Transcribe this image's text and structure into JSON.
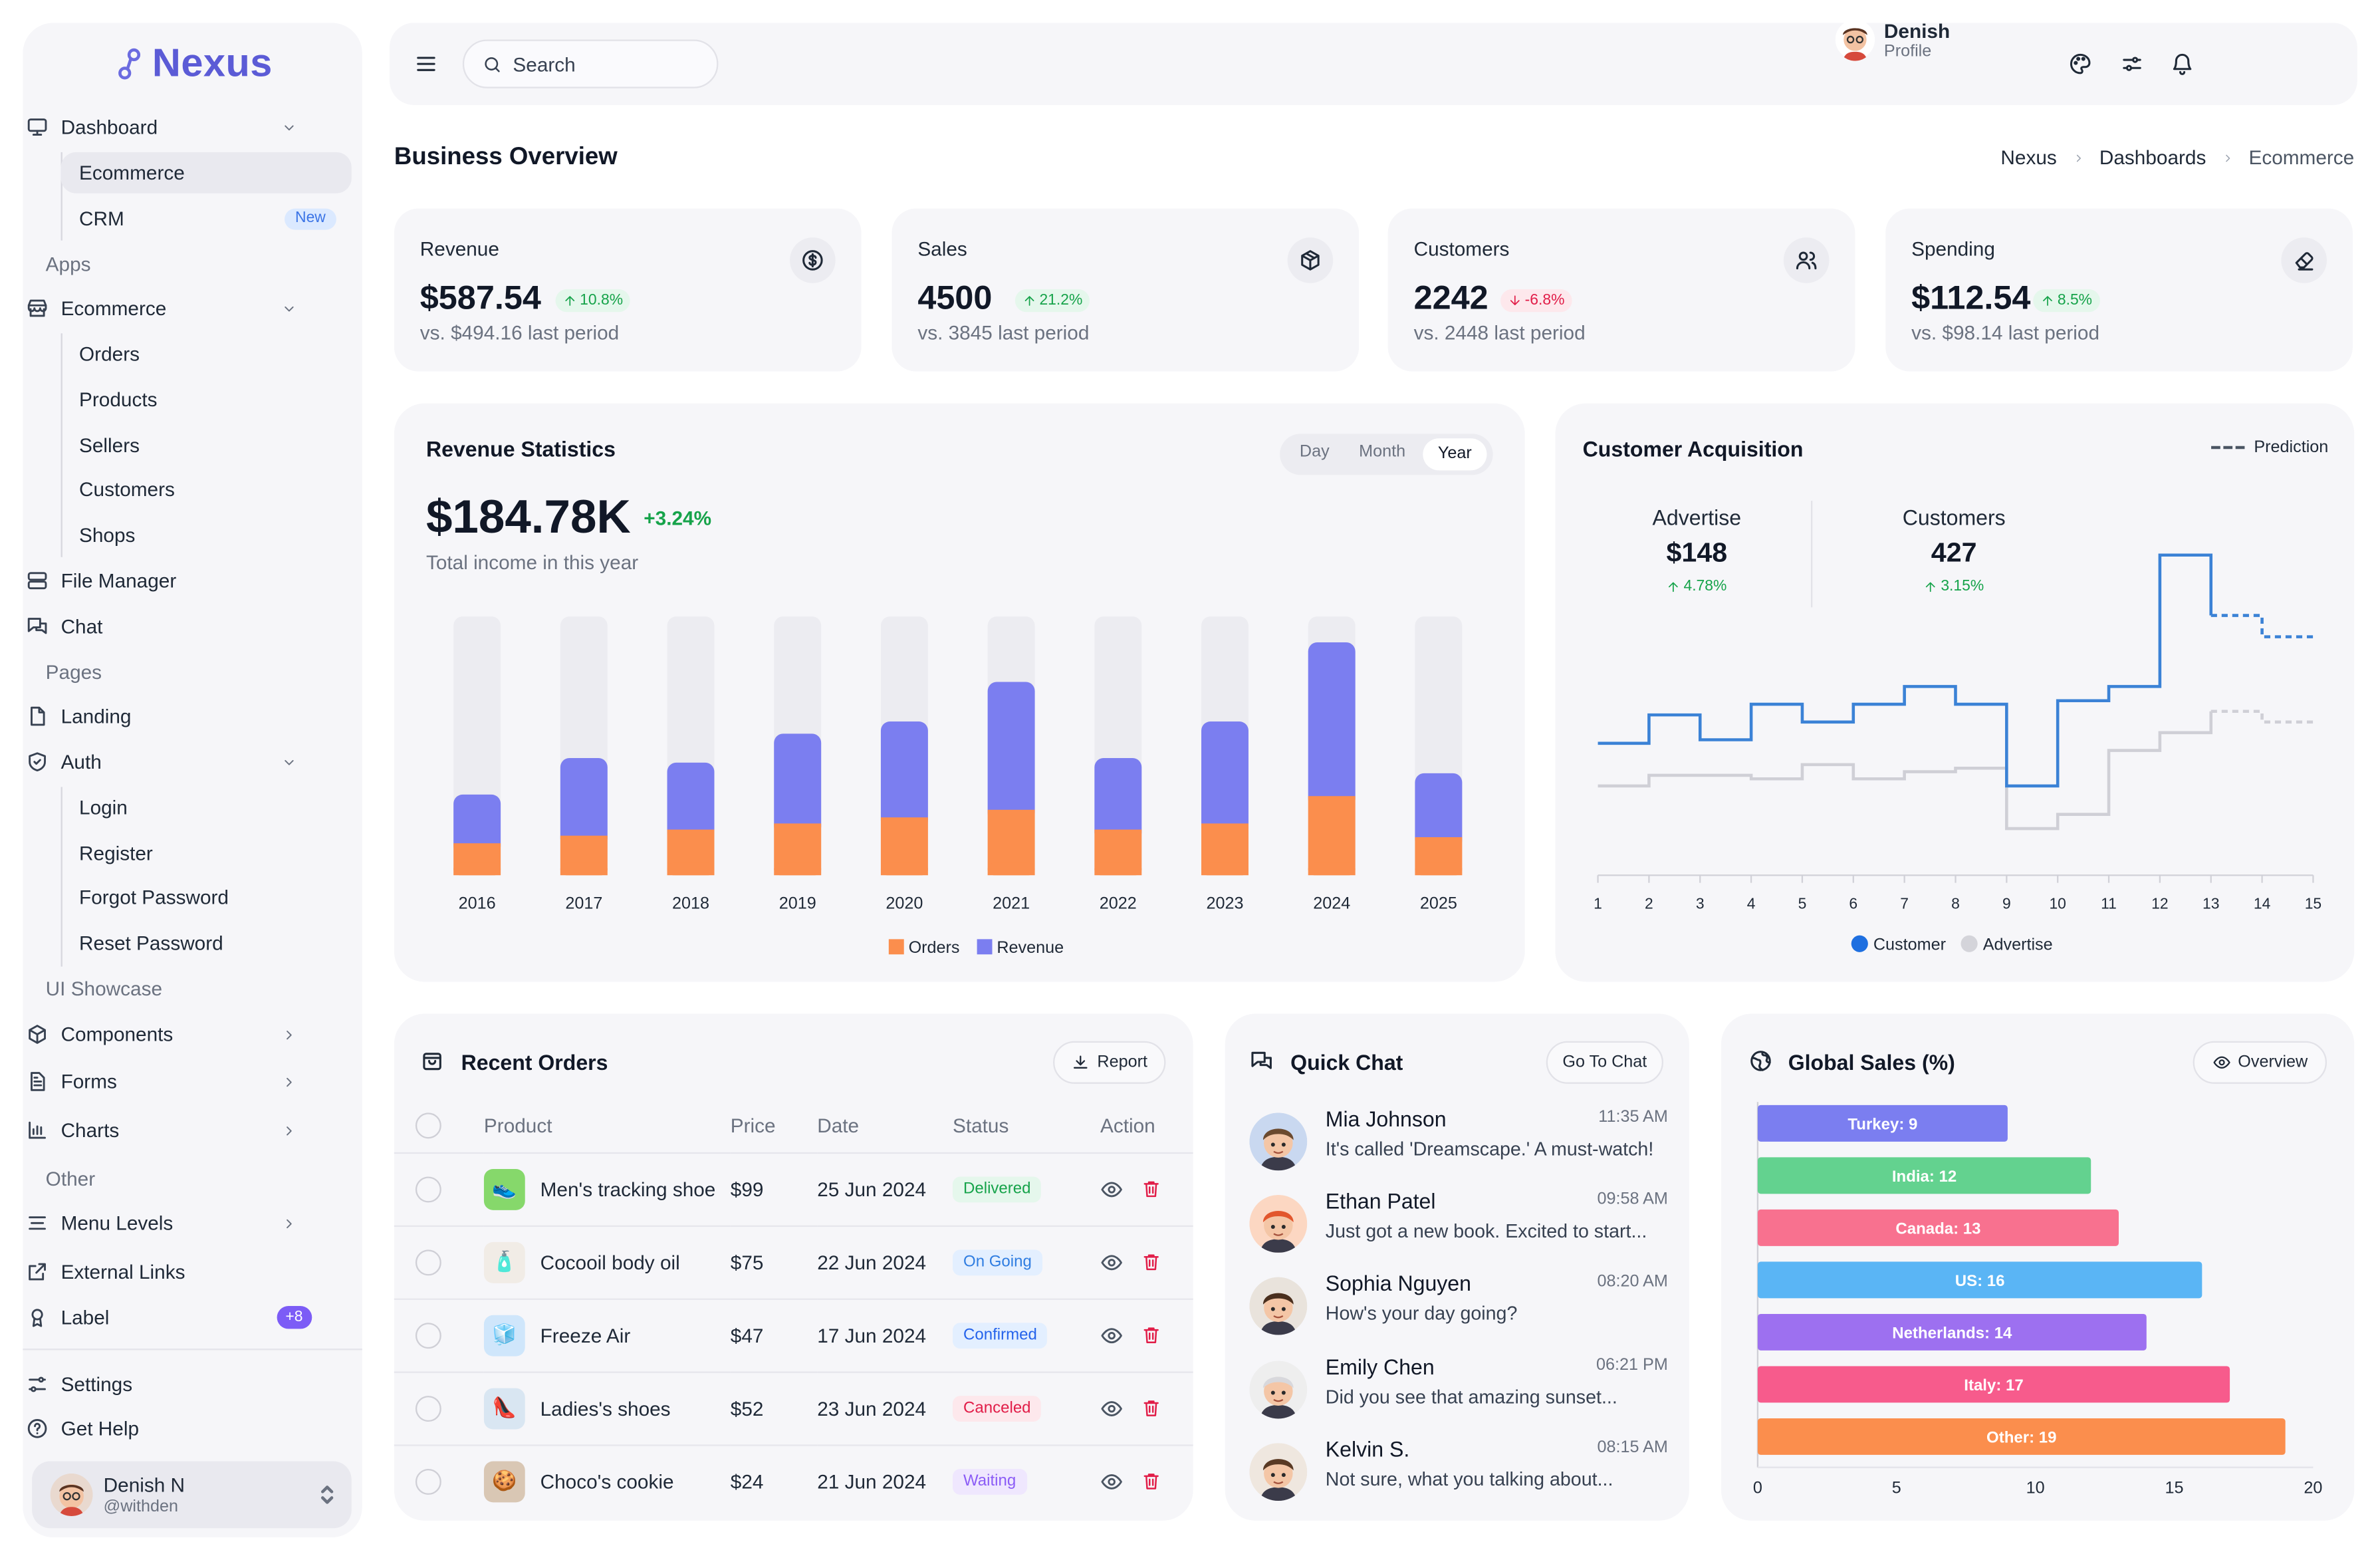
{
  "brand": {
    "name": "Nexus"
  },
  "sidebar": {
    "dashboard": "Dashboard",
    "ecommerce_sub": "Ecommerce",
    "crm": "CRM",
    "crm_badge": "New",
    "apps_section": "Apps",
    "ecommerce": "Ecommerce",
    "orders": "Orders",
    "products": "Products",
    "sellers": "Sellers",
    "customers": "Customers",
    "shops": "Shops",
    "file_manager": "File Manager",
    "chat": "Chat",
    "pages_section": "Pages",
    "landing": "Landing",
    "auth": "Auth",
    "login": "Login",
    "register": "Register",
    "forgot_password": "Forgot Password",
    "reset_password": "Reset Password",
    "ui_section": "UI Showcase",
    "components": "Components",
    "forms": "Forms",
    "charts": "Charts",
    "other_section": "Other",
    "menu_levels": "Menu Levels",
    "external_links": "External Links",
    "label": "Label",
    "label_badge": "+8",
    "settings": "Settings",
    "get_help": "Get Help",
    "user": {
      "name": "Denish N",
      "handle": "@withden"
    }
  },
  "topbar": {
    "search_placeholder": "Search",
    "user_name": "Denish",
    "user_role": "Profile"
  },
  "page": {
    "title": "Business Overview",
    "breadcrumb": [
      "Nexus",
      "Dashboards",
      "Ecommerce"
    ]
  },
  "stats": [
    {
      "label": "Revenue",
      "value": "$587.54",
      "change": "10.8%",
      "direction": "up",
      "sub": "vs. $494.16 last period",
      "icon": "dollar-icon"
    },
    {
      "label": "Sales",
      "value": "4500",
      "change": "21.2%",
      "direction": "up",
      "sub": "vs. 3845 last period",
      "icon": "box-icon"
    },
    {
      "label": "Customers",
      "value": "2242",
      "change": "-6.8%",
      "direction": "down",
      "sub": "vs. 2448 last period",
      "icon": "users-icon"
    },
    {
      "label": "Spending",
      "value": "$112.54",
      "change": "8.5%",
      "direction": "up",
      "sub": "vs. $98.14 last period",
      "icon": "eraser-icon"
    }
  ],
  "revenue_stats": {
    "title": "Revenue Statistics",
    "tabs": [
      "Day",
      "Month",
      "Year"
    ],
    "active_tab": "Year",
    "total": "$184.78K",
    "change": "+3.24%",
    "sub": "Total income in this year"
  },
  "acquisition": {
    "title": "Customer Acquisition",
    "prediction_label": "Prediction",
    "kpis": [
      {
        "label": "Advertise",
        "value": "$148",
        "change": "4.78%"
      },
      {
        "label": "Customers",
        "value": "427",
        "change": "3.15%"
      }
    ]
  },
  "recent_orders": {
    "title": "Recent Orders",
    "report_label": "Report",
    "columns": [
      "Product",
      "Price",
      "Date",
      "Status",
      "Action"
    ],
    "rows": [
      {
        "product": "Men's tracking shoe",
        "price": "$99",
        "date": "25 Jun 2024",
        "status": "Delivered",
        "status_key": "delivered",
        "thumb": "👟",
        "thumb_bg": "#86d86b"
      },
      {
        "product": "Cocooil body oil",
        "price": "$75",
        "date": "22 Jun 2024",
        "status": "On Going",
        "status_key": "ongoing",
        "thumb": "🧴",
        "thumb_bg": "#f1ece6"
      },
      {
        "product": "Freeze Air",
        "price": "$47",
        "date": "17 Jun 2024",
        "status": "Confirmed",
        "status_key": "confirmed",
        "thumb": "🧊",
        "thumb_bg": "#cfe6fb"
      },
      {
        "product": "Ladies's shoes",
        "price": "$52",
        "date": "23 Jun 2024",
        "status": "Canceled",
        "status_key": "canceled",
        "thumb": "👠",
        "thumb_bg": "#d9e6f2"
      },
      {
        "product": "Choco's cookie",
        "price": "$24",
        "date": "21 Jun 2024",
        "status": "Waiting",
        "status_key": "waiting",
        "thumb": "🍪",
        "thumb_bg": "#d9c7b4"
      }
    ]
  },
  "quick_chat": {
    "title": "Quick Chat",
    "button": "Go To Chat",
    "items": [
      {
        "name": "Mia Johnson",
        "time": "11:35 AM",
        "message": "It's called 'Dreamscape.' A must-watch!",
        "avatar_color": "#c9d8f0",
        "hair": "#6b4a2f"
      },
      {
        "name": "Ethan Patel",
        "time": "09:58 AM",
        "message": "Just got a new book. Excited to start...",
        "avatar_color": "#fcd7c2",
        "hair": "#e2562c"
      },
      {
        "name": "Sophia Nguyen",
        "time": "08:20 AM",
        "message": "How's your day going?",
        "avatar_color": "#e9e3dc",
        "hair": "#4a2f1e"
      },
      {
        "name": "Emily Chen",
        "time": "06:21 PM",
        "message": "Did you see that amazing sunset...",
        "avatar_color": "#eeeeee",
        "hair": "#d8d8dc"
      },
      {
        "name": "Kelvin S.",
        "time": "08:15 AM",
        "message": "Not sure, what you talking about...",
        "avatar_color": "#efe7df",
        "hair": "#5a3a24"
      }
    ]
  },
  "global_sales": {
    "title": "Global Sales (%)",
    "button": "Overview"
  },
  "chart_data": [
    {
      "type": "bar",
      "stacked": true,
      "categories": [
        "2016",
        "2017",
        "2018",
        "2019",
        "2020",
        "2021",
        "2022",
        "2023",
        "2024",
        "2025"
      ],
      "series": [
        {
          "name": "Orders",
          "color": "#fb8e4d",
          "values": [
            21,
            26,
            30,
            34,
            38,
            43,
            30,
            34,
            52,
            25
          ]
        },
        {
          "name": "Revenue",
          "color": "#7b7ef0",
          "values": [
            32,
            51,
            44,
            59,
            63,
            84,
            47,
            67,
            101,
            42
          ]
        }
      ],
      "ylim": [
        0,
        170
      ],
      "legend": "bottom"
    },
    {
      "type": "line",
      "step": true,
      "x": [
        1,
        2,
        3,
        4,
        5,
        6,
        7,
        8,
        9,
        10,
        11,
        12,
        13,
        14,
        15
      ],
      "series": [
        {
          "name": "Customer",
          "color": "#3b82d6",
          "values": [
            32,
            40,
            33,
            43,
            38,
            43,
            48,
            43,
            20,
            44,
            48,
            85,
            68,
            62,
            62
          ],
          "predicted_from": 13
        },
        {
          "name": "Advertise",
          "color": "#cfcfd6",
          "values": [
            20,
            23,
            23,
            22,
            26,
            22,
            24,
            25,
            8,
            12,
            30,
            35,
            41,
            38,
            38
          ],
          "predicted_from": 13
        }
      ],
      "ylim": [
        0,
        90
      ],
      "legend": "bottom"
    },
    {
      "type": "bar",
      "orientation": "horizontal",
      "categories": [
        "Turkey",
        "India",
        "Canada",
        "US",
        "Netherlands",
        "Italy",
        "Other"
      ],
      "labels": [
        "Turkey: 9",
        "India: 12",
        "Canada: 13",
        "US: 16",
        "Netherlands: 14",
        "Italy: 17",
        "Other: 19"
      ],
      "values": [
        9,
        12,
        13,
        16,
        14,
        17,
        19
      ],
      "colors": [
        "#7b7ef0",
        "#63d28f",
        "#f8718f",
        "#5ab5f5",
        "#9d70f0",
        "#f75b8c",
        "#fb8e4d"
      ],
      "xlim": [
        0,
        20
      ],
      "xticks": [
        "0",
        "5",
        "10",
        "15",
        "20"
      ]
    }
  ]
}
